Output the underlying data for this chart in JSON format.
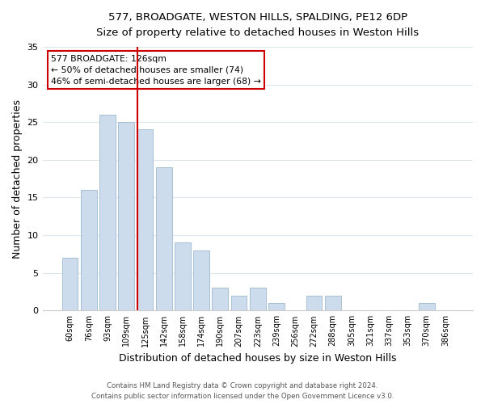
{
  "title1": "577, BROADGATE, WESTON HILLS, SPALDING, PE12 6DP",
  "title2": "Size of property relative to detached houses in Weston Hills",
  "xlabel": "Distribution of detached houses by size in Weston Hills",
  "ylabel": "Number of detached properties",
  "bar_color": "#ccdcec",
  "bar_edge_color": "#a8c0d4",
  "categories": [
    "60sqm",
    "76sqm",
    "93sqm",
    "109sqm",
    "125sqm",
    "142sqm",
    "158sqm",
    "174sqm",
    "190sqm",
    "207sqm",
    "223sqm",
    "239sqm",
    "256sqm",
    "272sqm",
    "288sqm",
    "305sqm",
    "321sqm",
    "337sqm",
    "353sqm",
    "370sqm",
    "386sqm"
  ],
  "values": [
    7,
    16,
    26,
    25,
    24,
    19,
    9,
    8,
    3,
    2,
    3,
    1,
    0,
    2,
    2,
    0,
    0,
    0,
    0,
    1,
    0
  ],
  "ylim": [
    0,
    35
  ],
  "yticks": [
    0,
    5,
    10,
    15,
    20,
    25,
    30,
    35
  ],
  "annotation_title": "577 BROADGATE: 126sqm",
  "annotation_line1": "← 50% of detached houses are smaller (74)",
  "annotation_line2": "46% of semi-detached houses are larger (68) →",
  "annotation_box_color": "#ffffff",
  "annotation_box_edge": "#cc0000",
  "marker_bar_index": 4,
  "marker_line_color": "#cc0000",
  "footer1": "Contains HM Land Registry data © Crown copyright and database right 2024.",
  "footer2": "Contains public sector information licensed under the Open Government Licence v3.0.",
  "background_color": "#ffffff",
  "grid_color": "#dce8f0"
}
